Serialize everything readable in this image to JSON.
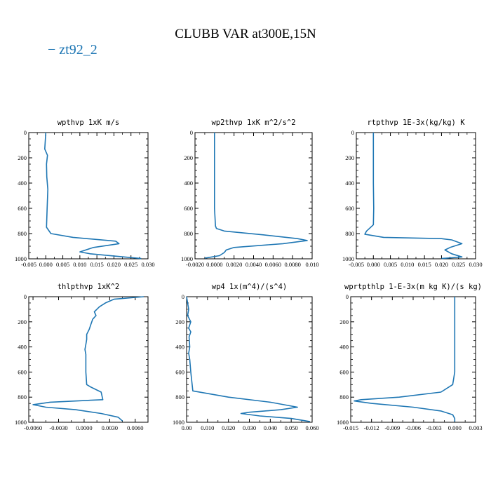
{
  "figure": {
    "title": "CLUBB VAR at300E,15N",
    "legend": {
      "label": "zt92_2",
      "color": "#1f77b4"
    }
  },
  "chart_data": [
    {
      "type": "line",
      "title": "wpthvp  1xK m/s",
      "xlim": [
        -0.005,
        0.03
      ],
      "ylim": [
        1000,
        0
      ],
      "xticks": [
        -0.005,
        0.0,
        0.005,
        0.01,
        0.015,
        0.02,
        0.025,
        0.03
      ],
      "xtick_labels": [
        "-0.005",
        "0.000",
        "0.005",
        "0.010",
        "0.015",
        "0.020",
        "0.025",
        "0.030"
      ],
      "yticks": [
        0,
        200,
        400,
        600,
        800,
        1000
      ],
      "ytick_labels": [
        "0",
        "200",
        "400",
        "600",
        "800",
        "1000"
      ],
      "series": [
        {
          "name": "zt92_2",
          "color": "#1f77b4",
          "x": [
            0.0,
            -0.0003,
            0.0005,
            0.0002,
            0.0003,
            0.0006,
            0.0004,
            0.0002,
            0.0015,
            0.008,
            0.0205,
            0.0215,
            0.014,
            0.01,
            0.013,
            0.021,
            0.028
          ],
          "y": [
            0,
            130,
            180,
            250,
            350,
            450,
            600,
            750,
            800,
            830,
            860,
            880,
            910,
            945,
            960,
            980,
            998
          ]
        }
      ]
    },
    {
      "type": "line",
      "title": "wp2thvp  1xK m^2/s^2",
      "xlim": [
        -0.002,
        0.01
      ],
      "ylim": [
        1000,
        0
      ],
      "xticks": [
        -0.002,
        0.0,
        0.002,
        0.004,
        0.006,
        0.008,
        0.01
      ],
      "xtick_labels": [
        "-0.0020",
        "0.0000",
        "0.0020",
        "0.0040",
        "0.0060",
        "0.0080",
        "0.010"
      ],
      "yticks": [
        0,
        200,
        400,
        600,
        800,
        1000
      ],
      "ytick_labels": [
        "0",
        "200",
        "400",
        "600",
        "800",
        "1000"
      ],
      "series": [
        {
          "name": "zt92_2",
          "color": "#1f77b4",
          "x": [
            0.0,
            0.0,
            0.0,
            0.0,
            0.0001,
            0.0002,
            0.001,
            0.005,
            0.0085,
            0.0095,
            0.007,
            0.002,
            0.0012,
            0.001,
            0.0005,
            -0.001
          ],
          "y": [
            0,
            200,
            400,
            600,
            740,
            760,
            780,
            810,
            840,
            855,
            880,
            910,
            930,
            950,
            975,
            995
          ]
        }
      ]
    },
    {
      "type": "line",
      "title": "rtpthvp  1E-3x(kg/kg) K",
      "xlim": [
        -0.005,
        0.03
      ],
      "ylim": [
        1000,
        0
      ],
      "xticks": [
        -0.005,
        0.0,
        0.005,
        0.01,
        0.015,
        0.02,
        0.025,
        0.03
      ],
      "xtick_labels": [
        "-0.005",
        "0.000",
        "0.005",
        "0.010",
        "0.015",
        "0.020",
        "0.025",
        "0.030"
      ],
      "yticks": [
        0,
        200,
        400,
        600,
        800,
        1000
      ],
      "ytick_labels": [
        "0",
        "200",
        "400",
        "600",
        "800",
        "1000"
      ],
      "series": [
        {
          "name": "zt92_2",
          "color": "#1f77b4",
          "x": [
            0.0,
            0.0,
            0.0,
            0.0001,
            0.0,
            -0.002,
            -0.0025,
            0.003,
            0.02,
            0.023,
            0.026,
            0.0225,
            0.021,
            0.023,
            0.026,
            0.02
          ],
          "y": [
            0,
            200,
            400,
            600,
            730,
            780,
            805,
            830,
            840,
            850,
            880,
            910,
            930,
            960,
            985,
            998
          ]
        }
      ]
    },
    {
      "type": "line",
      "title": "thlpthvp  1xK^2",
      "xlim": [
        -0.0065,
        0.0075
      ],
      "ylim": [
        1000,
        0
      ],
      "xticks": [
        -0.006,
        -0.003,
        0.0,
        0.003,
        0.006
      ],
      "xtick_labels": [
        "-0.0060",
        "-0.0030",
        "0.0000",
        "0.0030",
        "0.0060"
      ],
      "yticks": [
        0,
        200,
        400,
        600,
        800,
        1000
      ],
      "ytick_labels": [
        "0",
        "200",
        "400",
        "600",
        "800",
        "1000"
      ],
      "series": [
        {
          "name": "zt92_2",
          "color": "#1f77b4",
          "x": [
            0.007,
            0.0035,
            0.0025,
            0.0018,
            0.0015,
            0.0012,
            0.0014,
            0.001,
            0.0008,
            0.0006,
            0.0003,
            0.0003,
            0.0002,
            0.0001,
            0.0002,
            0.0002,
            0.0002,
            0.0003,
            0.0008,
            0.002,
            0.0022,
            -0.004,
            -0.006,
            -0.0045,
            -0.001,
            0.002,
            0.004,
            0.0045
          ],
          "y": [
            0,
            20,
            50,
            80,
            100,
            120,
            150,
            180,
            220,
            260,
            300,
            340,
            380,
            420,
            460,
            500,
            600,
            700,
            720,
            760,
            820,
            840,
            860,
            880,
            900,
            930,
            960,
            990
          ]
        }
      ]
    },
    {
      "type": "line",
      "title": "wp4  1x(m^4)/(s^4)",
      "xlim": [
        0.0,
        0.06
      ],
      "ylim": [
        1000,
        0
      ],
      "xticks": [
        0.0,
        0.01,
        0.02,
        0.03,
        0.04,
        0.05,
        0.06
      ],
      "xtick_labels": [
        "0.00",
        "0.010",
        "0.020",
        "0.030",
        "0.040",
        "0.050",
        "0.060"
      ],
      "yticks": [
        0,
        200,
        400,
        600,
        800,
        1000
      ],
      "ytick_labels": [
        "0",
        "200",
        "400",
        "600",
        "800",
        "1000"
      ],
      "series": [
        {
          "name": "zt92_2",
          "color": "#1f77b4",
          "x": [
            0.0,
            0.001,
            0.0005,
            0.002,
            0.001,
            0.002,
            0.0012,
            0.0015,
            0.001,
            0.0015,
            0.002,
            0.003,
            0.02,
            0.04,
            0.053,
            0.045,
            0.03,
            0.026,
            0.035,
            0.05,
            0.059
          ],
          "y": [
            0,
            100,
            150,
            200,
            250,
            280,
            320,
            400,
            450,
            500,
            600,
            750,
            800,
            840,
            880,
            900,
            920,
            930,
            950,
            970,
            995
          ]
        }
      ]
    },
    {
      "type": "line",
      "title": "wprtpthlp  1-E-3x(m kg K)/(s kg)",
      "xlim": [
        -0.015,
        0.003
      ],
      "ylim": [
        1000,
        0
      ],
      "xticks": [
        -0.015,
        -0.012,
        -0.009,
        -0.006,
        -0.003,
        0.0,
        0.003
      ],
      "xtick_labels": [
        "-0.015",
        "-0.012",
        "-0.009",
        "-0.006",
        "-0.003",
        "0.000",
        "0.003"
      ],
      "yticks": [
        0,
        200,
        400,
        600,
        800,
        1000
      ],
      "ytick_labels": [
        "0",
        "200",
        "400",
        "600",
        "800",
        "1000"
      ],
      "series": [
        {
          "name": "zt92_2",
          "color": "#1f77b4",
          "x": [
            0.0,
            0.0,
            0.0,
            0.0,
            -0.0003,
            -0.002,
            -0.008,
            -0.0135,
            -0.0145,
            -0.012,
            -0.006,
            -0.002,
            -0.0003,
            0.0,
            0.0
          ],
          "y": [
            0,
            200,
            400,
            600,
            700,
            760,
            800,
            820,
            830,
            850,
            880,
            910,
            940,
            970,
            995
          ]
        }
      ]
    }
  ]
}
